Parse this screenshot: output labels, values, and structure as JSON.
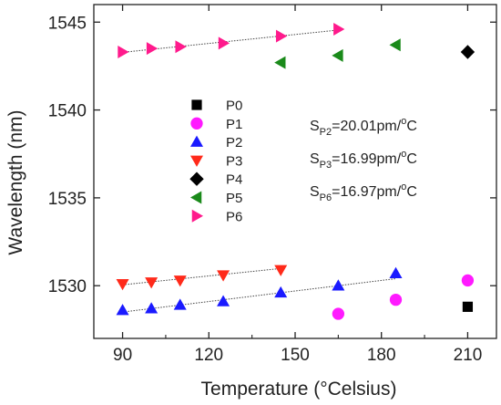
{
  "chart_data": {
    "type": "scatter",
    "xlabel": "Temperature (°Celsius)",
    "ylabel": "Wavelength (nm)",
    "xlim": [
      80,
      220
    ],
    "ylim": [
      1527,
      1546
    ],
    "x_ticks": [
      90,
      120,
      150,
      180,
      210
    ],
    "y_ticks": [
      1530,
      1535,
      1540,
      1545
    ],
    "grid": false,
    "legend_position": "upper-left, inside plot",
    "series": [
      {
        "name": "P0",
        "marker": "square",
        "color": "#000000",
        "points": [
          {
            "x": 210,
            "y": 1528.8
          }
        ]
      },
      {
        "name": "P1",
        "marker": "circle",
        "color": "#ff1aff",
        "points": [
          {
            "x": 165,
            "y": 1528.4
          },
          {
            "x": 185,
            "y": 1529.2
          },
          {
            "x": 210,
            "y": 1530.3
          }
        ]
      },
      {
        "name": "P2",
        "marker": "triangle-up",
        "color": "#1a1aff",
        "points": [
          {
            "x": 90,
            "y": 1528.6
          },
          {
            "x": 100,
            "y": 1528.7
          },
          {
            "x": 110,
            "y": 1528.9
          },
          {
            "x": 125,
            "y": 1529.1
          },
          {
            "x": 145,
            "y": 1529.6
          },
          {
            "x": 165,
            "y": 1530.0
          },
          {
            "x": 185,
            "y": 1530.7
          }
        ]
      },
      {
        "name": "P3",
        "marker": "triangle-down",
        "color": "#ff2a1a",
        "points": [
          {
            "x": 90,
            "y": 1530.1
          },
          {
            "x": 100,
            "y": 1530.2
          },
          {
            "x": 110,
            "y": 1530.3
          },
          {
            "x": 125,
            "y": 1530.6
          },
          {
            "x": 145,
            "y": 1530.9
          }
        ]
      },
      {
        "name": "P4",
        "marker": "diamond",
        "color": "#000000",
        "points": [
          {
            "x": 210,
            "y": 1543.3
          }
        ]
      },
      {
        "name": "P5",
        "marker": "triangle-left",
        "color": "#1a8a1a",
        "points": [
          {
            "x": 145,
            "y": 1542.7
          },
          {
            "x": 165,
            "y": 1543.1
          },
          {
            "x": 185,
            "y": 1543.7
          }
        ]
      },
      {
        "name": "P6",
        "marker": "triangle-right",
        "color": "#ff1a8c",
        "points": [
          {
            "x": 90,
            "y": 1543.3
          },
          {
            "x": 100,
            "y": 1543.5
          },
          {
            "x": 110,
            "y": 1543.6
          },
          {
            "x": 125,
            "y": 1543.8
          },
          {
            "x": 145,
            "y": 1544.2
          },
          {
            "x": 165,
            "y": 1544.6
          }
        ]
      }
    ],
    "fit_lines": [
      {
        "for": "P6",
        "x": [
          90,
          165
        ],
        "y": [
          1543.28,
          1544.55
        ]
      },
      {
        "for": "P3",
        "x": [
          90,
          145
        ],
        "y": [
          1530.05,
          1530.98
        ]
      },
      {
        "for": "P2",
        "x": [
          90,
          185
        ],
        "y": [
          1528.5,
          1530.4
        ]
      }
    ],
    "annotations": [
      {
        "main": "S",
        "sub": "P2",
        "rest": "=20.01pm/",
        "sup": "o",
        "unit": "C"
      },
      {
        "main": "S",
        "sub": "P3",
        "rest": "=16.99pm/",
        "sup": "o",
        "unit": "C"
      },
      {
        "main": "S",
        "sub": "P6",
        "rest": "=16.97pm/",
        "sup": "o",
        "unit": "C"
      }
    ]
  }
}
